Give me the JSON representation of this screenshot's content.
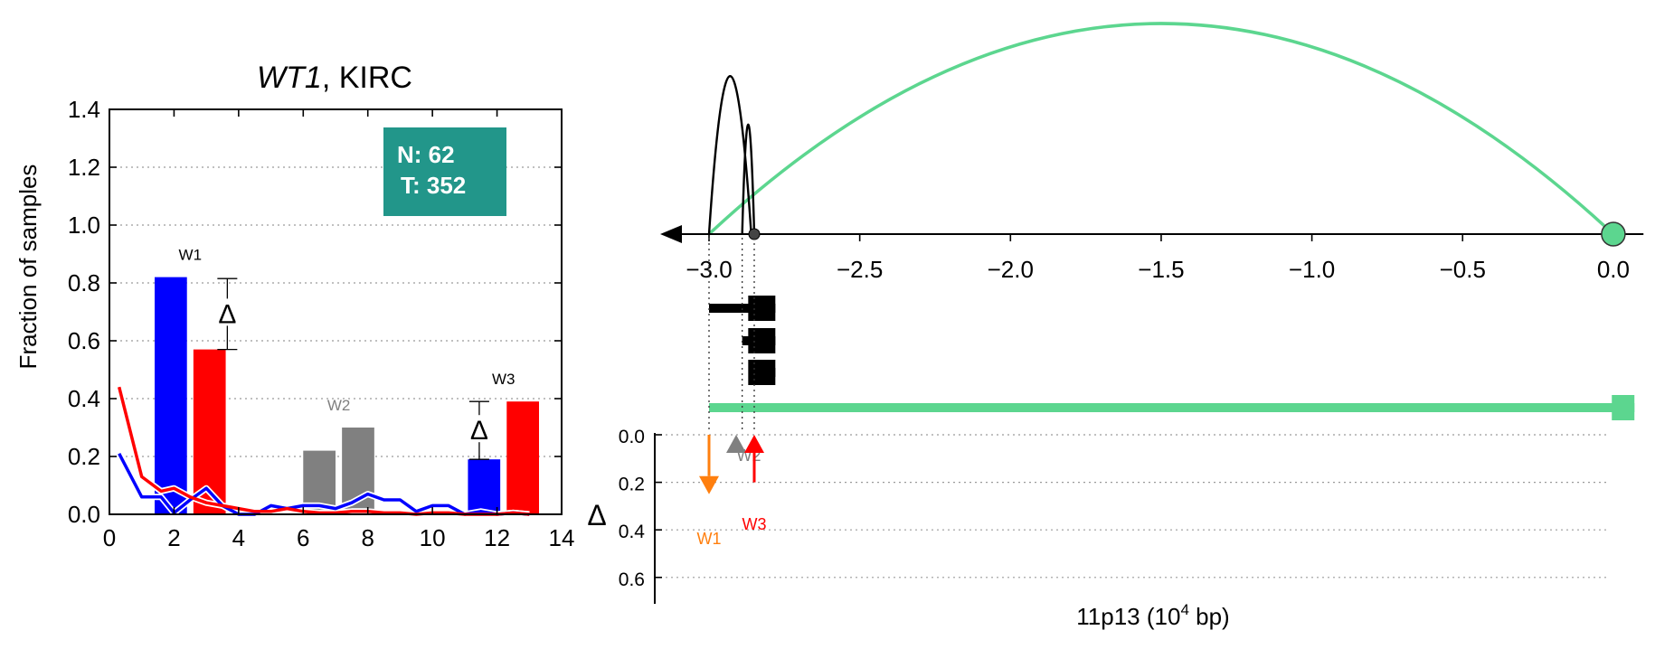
{
  "chart_data": [
    {
      "type": "bar",
      "title_gene": "WT1",
      "title_rest": ", KIRC",
      "ylabel": "Fraction of samples",
      "xlim": [
        0,
        14
      ],
      "ylim": [
        0,
        1.4
      ],
      "xticks": [
        0,
        2,
        4,
        6,
        8,
        10,
        12,
        14
      ],
      "yticks": [
        0.0,
        0.2,
        0.4,
        0.6,
        0.8,
        1.0,
        1.2,
        1.4
      ],
      "grid": "horizontal dotted",
      "counts_box": {
        "line1": "N: 62",
        "line2": "T: 352",
        "color": "#22968a"
      },
      "bars": [
        {
          "x0": 1.4,
          "x1": 2.4,
          "value": 0.82,
          "color": "#0000ff"
        },
        {
          "x0": 2.6,
          "x1": 3.6,
          "value": 0.57,
          "color": "#ff0000"
        },
        {
          "x0": 6.0,
          "x1": 7.0,
          "value": 0.22,
          "color": "#808080"
        },
        {
          "x0": 7.2,
          "x1": 8.2,
          "value": 0.3,
          "color": "#808080"
        },
        {
          "x0": 11.1,
          "x1": 12.1,
          "value": 0.19,
          "color": "#0000ff"
        },
        {
          "x0": 12.3,
          "x1": 13.3,
          "value": 0.39,
          "color": "#ff0000"
        }
      ],
      "windows": [
        {
          "label": "W1",
          "x": 2.5,
          "y": 0.88,
          "color": "#000000"
        },
        {
          "label": "W2",
          "x": 7.1,
          "y": 0.36,
          "color": "#808080"
        },
        {
          "label": "W3",
          "x": 12.2,
          "y": 0.45,
          "color": "#000000"
        }
      ],
      "deltas": [
        {
          "x": 3.65,
          "low": 0.57,
          "high": 0.815,
          "symbol": "Δ"
        },
        {
          "x": 11.45,
          "low": 0.19,
          "high": 0.39,
          "symbol": "Δ"
        }
      ],
      "series": [
        {
          "color": "#0000ff",
          "x": [
            0.3,
            1.0,
            1.6,
            2.0,
            2.5,
            3.0,
            3.5,
            4.0,
            4.5,
            5.0,
            5.5,
            6.0,
            6.5,
            7.0,
            7.5,
            8.0,
            8.5,
            9.0,
            9.5,
            10.0,
            10.5,
            11.0,
            11.5,
            12.0,
            12.5,
            13.0
          ],
          "y": [
            0.21,
            0.06,
            0.06,
            0.005,
            0.05,
            0.09,
            0.03,
            0.0,
            0.0,
            0.03,
            0.02,
            0.03,
            0.03,
            0.02,
            0.04,
            0.07,
            0.05,
            0.05,
            0.01,
            0.03,
            0.03,
            0.0,
            0.01,
            0.0,
            0.005,
            0.0
          ]
        },
        {
          "color": "#ff0000",
          "x": [
            0.3,
            1.0,
            1.6,
            2.0,
            2.5,
            3.0,
            3.5,
            4.0,
            4.5,
            5.0,
            5.5,
            6.0,
            6.5,
            7.0,
            7.5,
            8.0,
            8.5,
            9.0,
            9.5,
            10.0,
            10.5,
            11.0,
            11.5,
            12.0,
            12.5,
            13.0
          ],
          "y": [
            0.44,
            0.13,
            0.08,
            0.09,
            0.06,
            0.04,
            0.03,
            0.02,
            0.01,
            0.01,
            0.02,
            0.01,
            0.005,
            0.005,
            0.01,
            0.01,
            0.005,
            0.005,
            0.0,
            0.005,
            0.005,
            0.0,
            0.0,
            0.0,
            0.005,
            0.0
          ]
        }
      ]
    },
    {
      "type": "line",
      "xlabel_main": "11p13 (10",
      "xlabel_sup": "4",
      "xlabel_tail": " bp)",
      "xlim": [
        -3.15,
        0.1
      ],
      "xticks": [
        -3.0,
        -2.5,
        -2.0,
        -1.5,
        -1.0,
        -0.5,
        0.0
      ],
      "xtick_labels": [
        "−3.0",
        "−2.5",
        "−2.0",
        "−1.5",
        "−1.0",
        "−0.5",
        "0.0"
      ],
      "arcs": [
        {
          "from": -3.0,
          "to": 0.0,
          "height": 1.0,
          "color": "#5cd68f"
        },
        {
          "from": -3.0,
          "to": -2.86,
          "height": 0.75,
          "color": "#000000"
        },
        {
          "from": -2.89,
          "to": -2.85,
          "height": 0.52,
          "color": "#000000"
        }
      ],
      "tss_marker_x": 0.0,
      "dot_marker_x": -2.85,
      "transcripts": [
        {
          "from": -3.0,
          "to": -2.78,
          "color": "#000000"
        },
        {
          "from": -2.89,
          "to": -2.78,
          "color": "#000000"
        },
        {
          "from": -2.85,
          "to": -2.78,
          "color": "#000000"
        },
        {
          "from": -3.0,
          "to": 0.07,
          "color": "#5cd68f"
        }
      ],
      "guide_lines_x": [
        -3.0,
        -2.89,
        -2.85
      ],
      "delta_axis": {
        "label": "Δ",
        "ylim": [
          0.0,
          0.7
        ],
        "yticks": [
          0.0,
          0.2,
          0.4,
          0.6
        ],
        "ytick_labels": [
          "0.0",
          "0.2",
          "0.4",
          "0.6"
        ]
      },
      "delta_arrows": [
        {
          "label": "W1",
          "x": -3.0,
          "from": 0.0,
          "to": 0.25,
          "color": "#ff7f0e"
        },
        {
          "label": "W2",
          "x": -2.91,
          "from": 0.05,
          "to": 0.0,
          "color": "#808080"
        },
        {
          "label": "W3",
          "x": -2.85,
          "from": 0.2,
          "to": 0.0,
          "color": "#ff0000"
        }
      ]
    }
  ]
}
